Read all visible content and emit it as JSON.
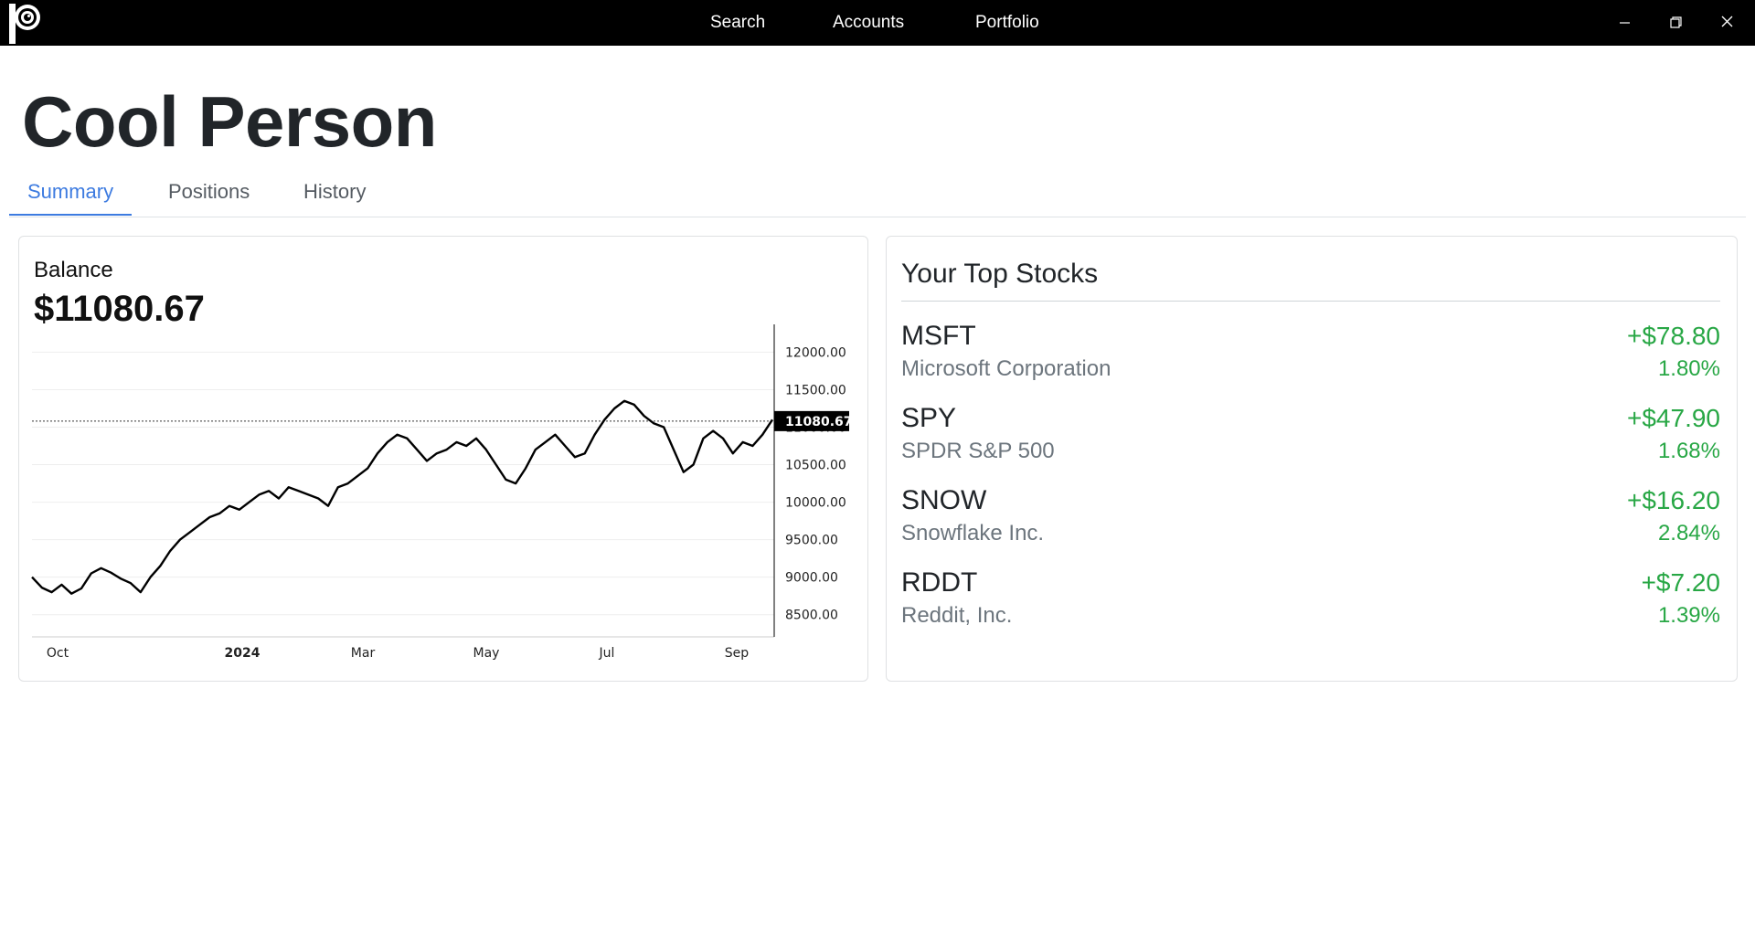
{
  "app": {
    "nav": [
      {
        "id": "search",
        "label": "Search"
      },
      {
        "id": "accounts",
        "label": "Accounts"
      },
      {
        "id": "portfolio",
        "label": "Portfolio"
      }
    ]
  },
  "page": {
    "title": "Cool Person",
    "tabs": [
      "Summary",
      "Positions",
      "History"
    ],
    "active_tab": "Summary"
  },
  "balance": {
    "label": "Balance",
    "value": "$11080.67"
  },
  "chart_data": {
    "type": "line",
    "title": "Balance",
    "x_ticks": [
      "Oct",
      "2024",
      "Mar",
      "May",
      "Jul",
      "Sep"
    ],
    "y_ticks": [
      "12000.00",
      "11500.00",
      "11000.00",
      "10500.00",
      "10000.00",
      "9500.00",
      "9000.00",
      "8500.00"
    ],
    "ylim": [
      8350,
      12200
    ],
    "current_value_label": "11080.67",
    "current_value": 11080.67,
    "series": [
      {
        "name": "Balance",
        "values": [
          9000,
          8860,
          8800,
          8900,
          8780,
          8850,
          9050,
          9120,
          9060,
          8980,
          8920,
          8800,
          9000,
          9150,
          9350,
          9500,
          9600,
          9700,
          9800,
          9850,
          9950,
          9900,
          10000,
          10100,
          10150,
          10050,
          10200,
          10150,
          10100,
          10050,
          9950,
          10200,
          10250,
          10350,
          10450,
          10650,
          10800,
          10900,
          10850,
          10700,
          10550,
          10650,
          10700,
          10800,
          10750,
          10850,
          10700,
          10500,
          10300,
          10250,
          10450,
          10700,
          10800,
          10900,
          10750,
          10600,
          10650,
          10900,
          11100,
          11250,
          11350,
          11300,
          11150,
          11050,
          11000,
          10700,
          10400,
          10500,
          10850,
          10950,
          10850,
          10650,
          10800,
          10750,
          10900,
          11100
        ]
      }
    ]
  },
  "top_stocks": {
    "title": "Your Top Stocks",
    "items": [
      {
        "symbol": "MSFT",
        "name": "Microsoft Corporation",
        "change": "+$78.80",
        "percent": "1.80%"
      },
      {
        "symbol": "SPY",
        "name": "SPDR S&P 500",
        "change": "+$47.90",
        "percent": "1.68%"
      },
      {
        "symbol": "SNOW",
        "name": "Snowflake Inc.",
        "change": "+$16.20",
        "percent": "2.84%"
      },
      {
        "symbol": "RDDT",
        "name": "Reddit, Inc.",
        "change": "+$7.20",
        "percent": "1.39%"
      }
    ]
  },
  "colors": {
    "accent": "#3d7be0",
    "positive": "#28a745",
    "titlebar": "#000000"
  }
}
